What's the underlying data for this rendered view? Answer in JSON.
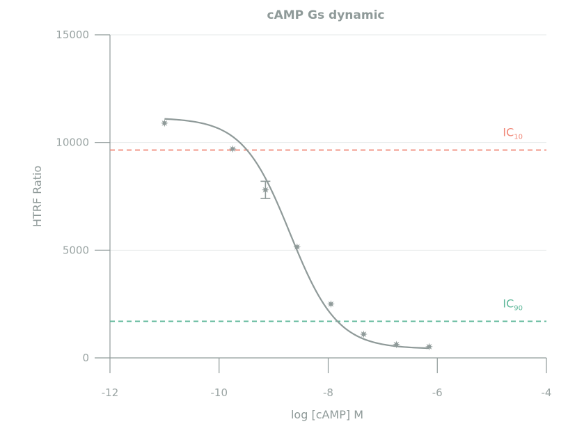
{
  "chart_data": {
    "type": "line",
    "title": "cAMP Gs dynamic",
    "xlabel": "log [cAMP] M",
    "ylabel": "HTRF Ratio",
    "xlim": [
      -12,
      -4
    ],
    "ylim": [
      0,
      15000
    ],
    "x_ticks": [
      -12,
      -10,
      -8,
      -6,
      -4
    ],
    "x_tick_labels": [
      "-12",
      "-10",
      "-8",
      "-6",
      "-4"
    ],
    "y_ticks": [
      0,
      5000,
      10000,
      15000
    ],
    "y_tick_labels": [
      "0",
      "5000",
      "10000",
      "15000"
    ],
    "grid": "horizontal",
    "fit": {
      "top": 11150,
      "bottom": 420,
      "log_ic50": -8.7,
      "hill_slope": -1.0
    },
    "series": [
      {
        "color": "#8f9a99",
        "x": [
          -11.0,
          -9.75,
          -9.15,
          -8.57,
          -7.95,
          -7.35,
          -6.75,
          -6.15
        ],
        "y": [
          10900,
          9700,
          7800,
          5150,
          2500,
          1100,
          620,
          520
        ],
        "error": [
          0,
          0,
          400,
          0,
          0,
          0,
          0,
          0
        ]
      }
    ],
    "reference_lines": [
      {
        "id": "ic10",
        "label_main": "IC",
        "label_sub": "10",
        "y": 9650,
        "color": "#f08878"
      },
      {
        "id": "ic90",
        "label_main": "IC",
        "label_sub": "90",
        "y": 1700,
        "color": "#5fb89a"
      }
    ]
  }
}
